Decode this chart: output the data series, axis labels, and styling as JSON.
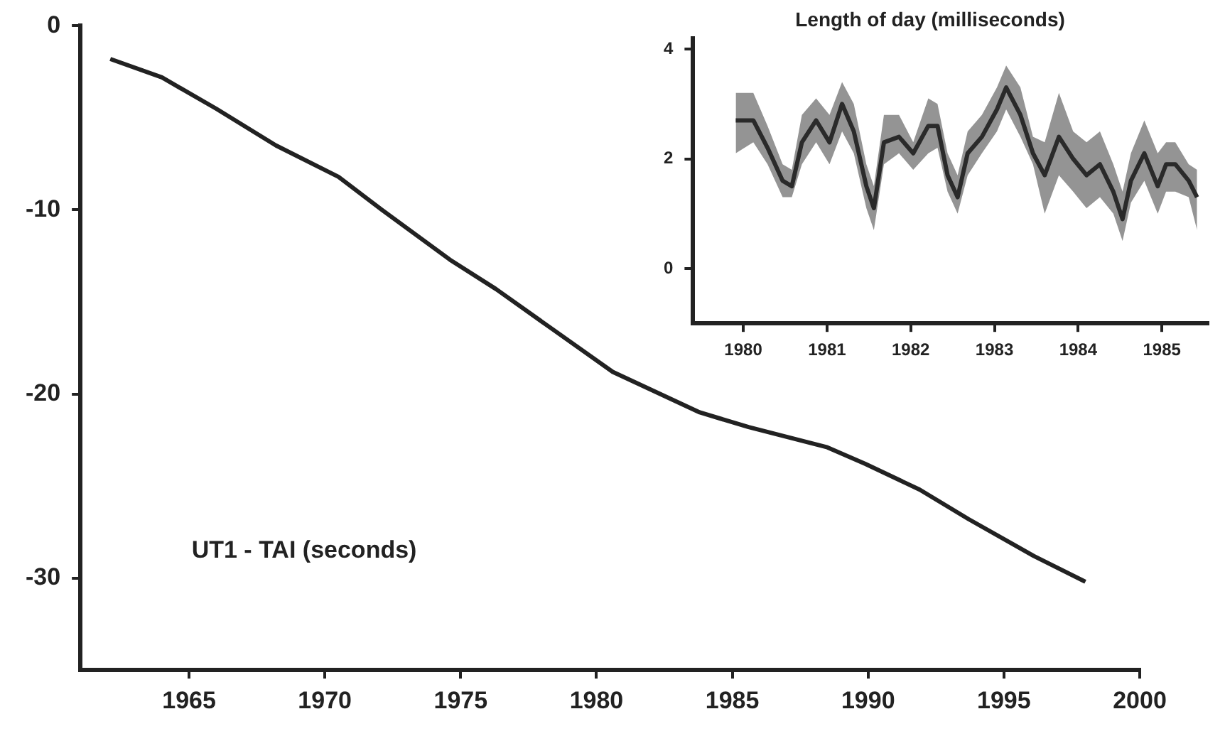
{
  "chart_data": [
    {
      "type": "line",
      "annotations": [
        "UT1 - TAI (seconds)"
      ],
      "xlim": [
        1961,
        2000
      ],
      "xticks": [
        1965,
        1970,
        1975,
        1980,
        1985,
        1990,
        1995,
        2000
      ],
      "ylim": [
        -35,
        0
      ],
      "yticks": [
        0,
        -10,
        -20,
        -30
      ],
      "grid": false,
      "legend": false,
      "series": [
        {
          "color": "#222222",
          "x": [
            1962.1,
            1964.0,
            1966.0,
            1968.2,
            1970.5,
            1972.1,
            1974.6,
            1976.3,
            1978.4,
            1980.6,
            1983.8,
            1985.6,
            1988.5,
            1989.9,
            1991.9,
            1993.7,
            1996.1,
            1998.0
          ],
          "values": [
            -1.8,
            -2.8,
            -4.5,
            -6.5,
            -8.2,
            -10.0,
            -12.7,
            -14.3,
            -16.5,
            -18.8,
            -21.0,
            -21.8,
            -22.9,
            -23.8,
            -25.2,
            -26.8,
            -28.8,
            -30.2
          ]
        }
      ]
    },
    {
      "type": "line",
      "title": "Length of day (milliseconds)",
      "xlim": [
        1979.4,
        1985.55
      ],
      "xticks": [
        1980,
        1981,
        1982,
        1983,
        1984,
        1985
      ],
      "ylim": [
        -1,
        4.2
      ],
      "yticks": [
        0,
        2,
        4
      ],
      "grid": false,
      "legend": false,
      "series": [
        {
          "color": "#2a2a2a",
          "x": [
            1979.91,
            1980.12,
            1980.29,
            1980.47,
            1980.58,
            1980.7,
            1980.87,
            1981.03,
            1981.18,
            1981.32,
            1981.47,
            1981.56,
            1981.68,
            1981.86,
            1982.03,
            1982.21,
            1982.32,
            1982.44,
            1982.56,
            1982.68,
            1982.85,
            1983.03,
            1983.14,
            1983.31,
            1983.46,
            1983.6,
            1983.77,
            1983.94,
            1984.1,
            1984.26,
            1984.42,
            1984.53,
            1984.63,
            1984.79,
            1984.95,
            1985.05,
            1985.16,
            1985.32,
            1985.42
          ],
          "values": [
            2.7,
            2.7,
            2.2,
            1.6,
            1.5,
            2.3,
            2.7,
            2.3,
            3.0,
            2.5,
            1.5,
            1.1,
            2.3,
            2.4,
            2.1,
            2.6,
            2.6,
            1.7,
            1.3,
            2.1,
            2.4,
            2.9,
            3.3,
            2.8,
            2.1,
            1.7,
            2.4,
            2.0,
            1.7,
            1.9,
            1.4,
            0.9,
            1.6,
            2.1,
            1.5,
            1.9,
            1.9,
            1.6,
            1.3
          ],
          "lower": [
            2.1,
            2.3,
            1.9,
            1.3,
            1.3,
            1.9,
            2.3,
            1.9,
            2.5,
            2.1,
            1.1,
            0.7,
            1.9,
            2.1,
            1.8,
            2.1,
            2.2,
            1.4,
            1.0,
            1.7,
            2.1,
            2.5,
            2.9,
            2.4,
            1.9,
            1.0,
            1.7,
            1.4,
            1.1,
            1.3,
            1.0,
            0.5,
            1.2,
            1.6,
            1.0,
            1.4,
            1.4,
            1.3,
            0.7
          ],
          "upper": [
            3.2,
            3.2,
            2.6,
            1.9,
            1.8,
            2.8,
            3.1,
            2.8,
            3.4,
            3.0,
            1.9,
            1.5,
            2.8,
            2.8,
            2.3,
            3.1,
            3.0,
            2.1,
            1.7,
            2.5,
            2.8,
            3.3,
            3.7,
            3.3,
            2.4,
            2.3,
            3.2,
            2.5,
            2.3,
            2.5,
            1.9,
            1.4,
            2.1,
            2.7,
            2.1,
            2.3,
            2.3,
            1.9,
            1.8
          ]
        }
      ]
    }
  ]
}
